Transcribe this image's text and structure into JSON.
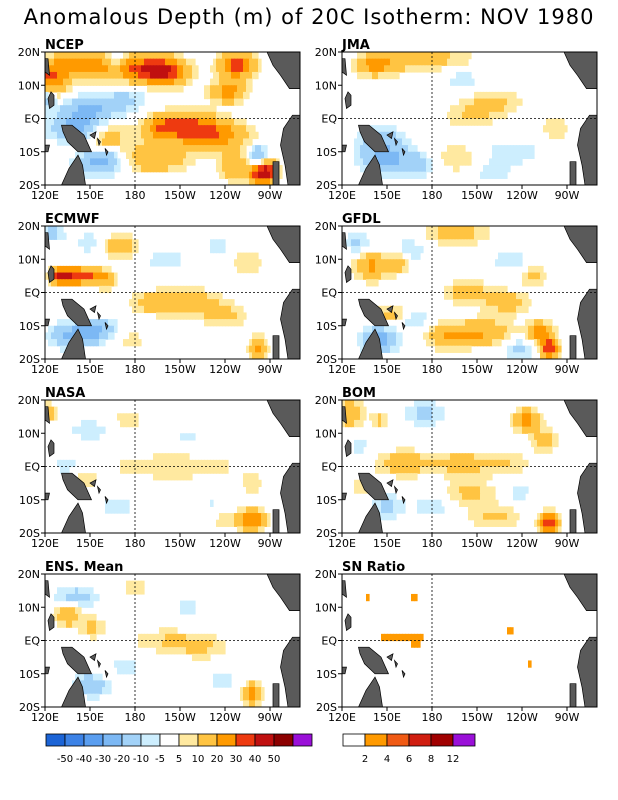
{
  "figure": {
    "title": "Anomalous Depth (m) of 20C Isotherm: NOV 1980"
  },
  "axes": {
    "lat_ticks": [
      "20N",
      "10N",
      "EQ",
      "10S",
      "20S"
    ],
    "lon_ticks": [
      "120E",
      "150E",
      "180",
      "150W",
      "120W",
      "90W"
    ]
  },
  "colors": {
    "land": "#5a5a5a",
    "frame": "#000000",
    "reference_lines": "#000000"
  },
  "panels": [
    {
      "label": "NCEP"
    },
    {
      "label": "JMA"
    },
    {
      "label": "ECMWF"
    },
    {
      "label": "GFDL"
    },
    {
      "label": "NASA"
    },
    {
      "label": "BOM"
    },
    {
      "label": "ENS. Mean"
    },
    {
      "label": "SN Ratio"
    }
  ],
  "colorbars": {
    "anomaly": {
      "labels": [
        "-50",
        "-40",
        "-30",
        "-20",
        "-10",
        "-5",
        "5",
        "10",
        "20",
        "30",
        "40",
        "50"
      ],
      "colors": [
        "#1c64d6",
        "#3c82e6",
        "#5a9ef0",
        "#7cb8f4",
        "#a2d2f8",
        "#cdeefe",
        "#ffffff",
        "#ffe9a0",
        "#ffc442",
        "#ff9a00",
        "#ee3a10",
        "#c01010",
        "#8c0000",
        "#9a10d8"
      ]
    },
    "snr": {
      "labels": [
        "2",
        "4",
        "6",
        "8",
        "12"
      ],
      "colors": [
        "#ffffff",
        "#ff9a00",
        "#f05a14",
        "#d01e10",
        "#a00000",
        "#9a10d8"
      ]
    }
  },
  "chart_data": [
    {
      "type": "heatmap",
      "panel": "NCEP",
      "title": "NCEP",
      "x_range": [
        "120E",
        "70W"
      ],
      "y_range": [
        "20S",
        "20N"
      ],
      "blobs": [
        [
          123,
          12,
          1.8,
          4,
          30
        ],
        [
          145,
          16,
          1.3,
          6,
          25
        ],
        [
          180,
          15,
          1.3,
          7,
          30
        ],
        [
          200,
          14,
          1.4,
          5,
          35
        ],
        [
          242,
          8,
          1.1,
          4,
          25
        ],
        [
          248,
          16,
          1.3,
          4,
          35
        ],
        [
          197,
          -3,
          1.3,
          4,
          20
        ],
        [
          215,
          -2,
          1.4,
          7,
          25
        ],
        [
          232,
          -5,
          1.4,
          8,
          25
        ],
        [
          160,
          -6,
          1.6,
          5,
          20
        ],
        [
          192,
          -12,
          1.4,
          8,
          20
        ],
        [
          245,
          -14,
          1.5,
          3,
          20
        ],
        [
          265,
          -16,
          1.2,
          3,
          55
        ],
        [
          150,
          3,
          1.3,
          7,
          -20
        ],
        [
          142,
          -3,
          1.4,
          6,
          -25
        ],
        [
          160,
          -12,
          1.3,
          5,
          -25
        ],
        [
          120,
          6,
          1.0,
          2,
          -22
        ],
        [
          262,
          -12,
          1.2,
          2,
          -30
        ],
        [
          168,
          17,
          1.1,
          2,
          -15
        ],
        [
          175,
          6,
          1.2,
          5,
          -10
        ],
        [
          150,
          -15,
          1.5,
          5,
          -8
        ]
      ]
    },
    {
      "type": "heatmap",
      "panel": "JMA",
      "title": "JMA",
      "x_range": [
        "120E",
        "70W"
      ],
      "y_range": [
        "20S",
        "20N"
      ],
      "blobs": [
        [
          140,
          16,
          1.1,
          4,
          20
        ],
        [
          155,
          17,
          1.2,
          5,
          12
        ],
        [
          185,
          18,
          1.3,
          8,
          12
        ],
        [
          222,
          5,
          1.3,
          6,
          12
        ],
        [
          205,
          1,
          1.3,
          6,
          10
        ],
        [
          262,
          -3,
          1.1,
          3,
          10
        ],
        [
          196,
          -12,
          1.4,
          6,
          10
        ],
        [
          145,
          -6,
          1.4,
          5,
          -15
        ],
        [
          150,
          -12,
          1.4,
          6,
          -22
        ],
        [
          172,
          -14,
          1.2,
          4,
          -12
        ],
        [
          233,
          -10,
          1.2,
          6,
          -10
        ],
        [
          220,
          -16,
          1.3,
          5,
          -8
        ],
        [
          200,
          12,
          1.2,
          5,
          -8
        ]
      ]
    },
    {
      "type": "heatmap",
      "panel": "ECMWF",
      "title": "ECMWF",
      "x_range": [
        "120E",
        "70W"
      ],
      "y_range": [
        "20S",
        "20N"
      ],
      "blobs": [
        [
          128,
          5,
          0.9,
          2,
          30
        ],
        [
          135,
          5,
          0.9,
          2,
          30
        ],
        [
          143,
          5,
          0.9,
          2,
          28
        ],
        [
          152,
          5,
          0.9,
          2,
          25
        ],
        [
          161,
          4,
          0.9,
          2,
          20
        ],
        [
          170,
          14,
          1.1,
          4,
          18
        ],
        [
          215,
          -3,
          1.3,
          7,
          18
        ],
        [
          240,
          -7,
          1.2,
          5,
          12
        ],
        [
          255,
          9,
          1.2,
          4,
          10
        ],
        [
          190,
          -3,
          1.1,
          5,
          12
        ],
        [
          170,
          -14,
          1.2,
          6,
          10
        ],
        [
          262,
          -17,
          1.2,
          2,
          25
        ],
        [
          125,
          18,
          1.0,
          3,
          -12
        ],
        [
          150,
          15,
          1.0,
          3,
          -10
        ],
        [
          155,
          -12,
          1.3,
          5,
          -25
        ],
        [
          135,
          -13,
          1.2,
          4,
          -20
        ],
        [
          200,
          10,
          1.0,
          4,
          -10
        ],
        [
          235,
          14,
          1.0,
          3,
          -8
        ]
      ]
    },
    {
      "type": "heatmap",
      "panel": "GFDL",
      "title": "GFDL",
      "x_range": [
        "120E",
        "70W"
      ],
      "y_range": [
        "20S",
        "20N"
      ],
      "blobs": [
        [
          196,
          18,
          1.3,
          7,
          15
        ],
        [
          140,
          8,
          1.4,
          4,
          22
        ],
        [
          158,
          9,
          1.0,
          2,
          18
        ],
        [
          203,
          0,
          1.2,
          5,
          15
        ],
        [
          230,
          -3,
          1.2,
          5,
          15
        ],
        [
          155,
          -7,
          1.2,
          4,
          18
        ],
        [
          190,
          -13,
          1.3,
          5,
          18
        ],
        [
          215,
          -12,
          1.3,
          6,
          20
        ],
        [
          252,
          -12,
          1.1,
          3,
          25
        ],
        [
          258,
          -17,
          1.0,
          2,
          40
        ],
        [
          248,
          5,
          1.2,
          3,
          12
        ],
        [
          130,
          15,
          1.1,
          3,
          -12
        ],
        [
          165,
          13,
          1.1,
          4,
          -10
        ],
        [
          145,
          -14,
          1.3,
          4,
          -25
        ],
        [
          165,
          -8,
          1.2,
          4,
          -15
        ],
        [
          232,
          10,
          1.0,
          4,
          -10
        ],
        [
          238,
          -17,
          1.1,
          4,
          -12
        ]
      ]
    },
    {
      "type": "heatmap",
      "panel": "NASA",
      "title": "NASA",
      "x_range": [
        "120E",
        "70W"
      ],
      "y_range": [
        "20S",
        "20N"
      ],
      "blobs": [
        [
          190,
          0,
          1.2,
          10,
          8
        ],
        [
          225,
          0,
          1.2,
          10,
          7
        ],
        [
          258,
          -5,
          1.1,
          3,
          8
        ],
        [
          258,
          -16,
          1.1,
          3,
          30
        ],
        [
          240,
          -16,
          1.0,
          3,
          10
        ],
        [
          145,
          -4,
          1.2,
          4,
          8
        ],
        [
          122,
          16,
          1.0,
          2,
          15
        ],
        [
          175,
          14,
          1.1,
          4,
          8
        ],
        [
          150,
          11,
          1.1,
          6,
          -8
        ],
        [
          135,
          0,
          1.1,
          4,
          -8
        ],
        [
          168,
          -12,
          1.2,
          5,
          -7
        ],
        [
          215,
          9,
          1.0,
          4,
          -6
        ],
        [
          232,
          -12,
          1.0,
          4,
          -6
        ]
      ]
    },
    {
      "type": "heatmap",
      "panel": "BOM",
      "title": "BOM",
      "x_range": [
        "120E",
        "70W"
      ],
      "y_range": [
        "20S",
        "20N"
      ],
      "blobs": [
        [
          125,
          16,
          1.3,
          3,
          20
        ],
        [
          145,
          14,
          0.9,
          2,
          12
        ],
        [
          160,
          1,
          1.3,
          6,
          15
        ],
        [
          195,
          1,
          1.3,
          7,
          12
        ],
        [
          226,
          1,
          1.3,
          7,
          10
        ],
        [
          243,
          14,
          1.1,
          3,
          25
        ],
        [
          255,
          8,
          1.1,
          3,
          15
        ],
        [
          205,
          -8,
          1.2,
          6,
          12
        ],
        [
          222,
          -15,
          1.2,
          6,
          12
        ],
        [
          258,
          -17,
          1.0,
          2,
          40
        ],
        [
          135,
          -6,
          1.1,
          3,
          10
        ],
        [
          175,
          16,
          1.2,
          5,
          -12
        ],
        [
          132,
          6,
          1.0,
          2,
          -8
        ],
        [
          150,
          -12,
          1.2,
          4,
          -12
        ],
        [
          180,
          -12,
          1.2,
          4,
          -10
        ],
        [
          238,
          -8,
          1.0,
          3,
          -8
        ]
      ]
    },
    {
      "type": "heatmap",
      "panel": "ENS. Mean",
      "title": "ENS. Mean",
      "x_range": [
        "120E",
        "70W"
      ],
      "y_range": [
        "20S",
        "20N"
      ],
      "blobs": [
        [
          135,
          8,
          1.2,
          3,
          20
        ],
        [
          152,
          4,
          1.1,
          3,
          12
        ],
        [
          200,
          0,
          1.2,
          8,
          10
        ],
        [
          225,
          -2,
          1.2,
          6,
          10
        ],
        [
          258,
          -16,
          1.1,
          2,
          25
        ],
        [
          160,
          -10,
          1.2,
          4,
          8
        ],
        [
          180,
          16,
          1.2,
          4,
          7
        ],
        [
          140,
          13,
          1.1,
          5,
          -15
        ],
        [
          152,
          -13,
          1.2,
          4,
          -20
        ],
        [
          172,
          -8,
          1.1,
          4,
          -10
        ],
        [
          215,
          10,
          1.0,
          4,
          -7
        ],
        [
          238,
          -12,
          1.0,
          4,
          -7
        ]
      ]
    },
    {
      "type": "heatmap",
      "panel": "SN Ratio",
      "title": "SN Ratio",
      "x_range": [
        "120E",
        "70W"
      ],
      "y_range": [
        "20S",
        "20N"
      ],
      "blobs": [
        [
          155,
          1,
          0.6,
          5,
          3
        ],
        [
          170,
          0,
          0.5,
          3,
          3
        ],
        [
          165,
          -4,
          0.4,
          2,
          3
        ],
        [
          137,
          13,
          0.4,
          1,
          3
        ],
        [
          168,
          13,
          0.4,
          1,
          3
        ],
        [
          232,
          3,
          0.4,
          1,
          3
        ],
        [
          245,
          -7,
          0.4,
          1,
          3
        ],
        [
          205,
          0,
          0.3,
          1,
          3
        ],
        [
          260,
          -2,
          0.3,
          1,
          3
        ],
        [
          150,
          -18,
          0.3,
          1,
          3
        ]
      ]
    }
  ]
}
